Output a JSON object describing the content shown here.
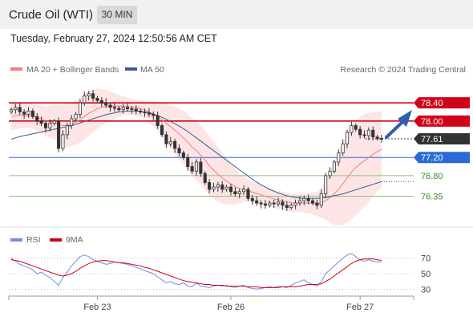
{
  "header": {
    "title": "Crude Oil (WTI)",
    "timeframe": "30 MIN",
    "datetime": "Tuesday, February 27, 2024 12:50:56 AM CET"
  },
  "colors": {
    "resistance": "#d0021b",
    "pivot": "#2a6ad8",
    "support": "#8cc47a",
    "current": "#333333",
    "ma50": "#3c5a96",
    "ma20": "#f08080",
    "band": "#fde0e0",
    "rsi": "#6f8fe0",
    "rsi_ma": "#d0021b",
    "arrow": "#2f5fa8"
  },
  "chart_data": [
    {
      "type": "candlestick",
      "legend": [
        {
          "name": "MA 20 + Bollinger Bands",
          "color": "#f08080"
        },
        {
          "name": "MA 50",
          "color": "#3c5a96"
        }
      ],
      "credit": "Research © 2024 Trading Central",
      "ylim": [
        75.9,
        78.72
      ],
      "x_ticks": [
        "Feb 23",
        "Feb 26",
        "Feb 27"
      ],
      "x_tick_index": [
        20,
        51,
        81
      ],
      "levels": [
        {
          "value": 78.4,
          "label": "78.40",
          "kind": "resistance"
        },
        {
          "value": 78.0,
          "label": "78.00",
          "kind": "resistance"
        },
        {
          "value": 77.61,
          "label": "77.61",
          "kind": "current"
        },
        {
          "value": 77.2,
          "label": "77.20",
          "kind": "pivot"
        },
        {
          "value": 76.8,
          "label": "76.80",
          "kind": "support"
        },
        {
          "value": 76.35,
          "label": "76.35",
          "kind": "support"
        }
      ],
      "close": [
        78.25,
        78.3,
        78.2,
        78.15,
        78.22,
        78.1,
        78.0,
        77.95,
        77.85,
        77.95,
        78.0,
        77.4,
        77.7,
        77.9,
        78.05,
        78.15,
        78.4,
        78.55,
        78.6,
        78.5,
        78.45,
        78.4,
        78.35,
        78.3,
        78.28,
        78.25,
        78.3,
        78.27,
        78.26,
        78.22,
        78.2,
        78.18,
        78.15,
        78.12,
        77.9,
        77.7,
        77.5,
        77.55,
        77.4,
        77.3,
        77.2,
        77.0,
        76.9,
        77.1,
        76.85,
        76.65,
        76.5,
        76.55,
        76.6,
        76.5,
        76.55,
        76.45,
        76.4,
        76.45,
        76.5,
        76.3,
        76.25,
        76.2,
        76.18,
        76.15,
        76.2,
        76.18,
        76.22,
        76.15,
        76.1,
        76.15,
        76.2,
        76.25,
        76.3,
        76.25,
        76.2,
        76.15,
        76.4,
        76.8,
        76.9,
        77.1,
        77.3,
        77.5,
        77.75,
        77.9,
        77.82,
        77.7,
        77.68,
        77.8,
        77.65,
        77.62,
        77.61
      ],
      "ma20": [
        78.1,
        78.12,
        78.13,
        78.12,
        78.12,
        78.1,
        78.08,
        78.05,
        78.0,
        77.98,
        77.98,
        77.92,
        77.9,
        77.9,
        77.93,
        77.97,
        78.03,
        78.1,
        78.17,
        78.22,
        78.27,
        78.3,
        78.32,
        78.33,
        78.33,
        78.33,
        78.33,
        78.32,
        78.31,
        78.29,
        78.27,
        78.24,
        78.2,
        78.16,
        78.1,
        78.03,
        77.95,
        77.88,
        77.8,
        77.72,
        77.63,
        77.53,
        77.43,
        77.35,
        77.25,
        77.14,
        77.02,
        76.92,
        76.83,
        76.75,
        76.68,
        76.62,
        76.56,
        76.52,
        76.5,
        76.47,
        76.44,
        76.41,
        76.38,
        76.35,
        76.32,
        76.29,
        76.27,
        76.25,
        76.23,
        76.21,
        76.2,
        76.2,
        76.2,
        76.2,
        76.19,
        76.18,
        76.2,
        76.25,
        76.32,
        76.4,
        76.5,
        76.62,
        76.75,
        76.88,
        76.98,
        77.06,
        77.13,
        77.2,
        77.27,
        77.33,
        77.38
      ],
      "band_width": [
        0.3,
        0.3,
        0.29,
        0.28,
        0.27,
        0.27,
        0.28,
        0.3,
        0.33,
        0.36,
        0.38,
        0.42,
        0.45,
        0.47,
        0.48,
        0.49,
        0.5,
        0.5,
        0.49,
        0.47,
        0.44,
        0.4,
        0.36,
        0.32,
        0.28,
        0.24,
        0.21,
        0.19,
        0.18,
        0.18,
        0.19,
        0.21,
        0.24,
        0.28,
        0.33,
        0.38,
        0.43,
        0.48,
        0.52,
        0.56,
        0.59,
        0.62,
        0.64,
        0.65,
        0.66,
        0.66,
        0.65,
        0.63,
        0.6,
        0.56,
        0.51,
        0.45,
        0.39,
        0.33,
        0.28,
        0.25,
        0.23,
        0.22,
        0.21,
        0.2,
        0.2,
        0.2,
        0.2,
        0.2,
        0.2,
        0.2,
        0.2,
        0.2,
        0.21,
        0.22,
        0.24,
        0.27,
        0.33,
        0.42,
        0.55,
        0.68,
        0.8,
        0.9,
        0.98,
        1.03,
        1.05,
        1.04,
        1.02,
        0.98,
        0.93,
        0.88,
        0.83
      ],
      "ma50": [
        77.6,
        77.63,
        77.66,
        77.68,
        77.7,
        77.72,
        77.74,
        77.76,
        77.78,
        77.8,
        77.82,
        77.84,
        77.86,
        77.88,
        77.9,
        77.93,
        77.96,
        77.99,
        78.02,
        78.05,
        78.08,
        78.11,
        78.14,
        78.16,
        78.18,
        78.2,
        78.21,
        78.22,
        78.22,
        78.22,
        78.21,
        78.2,
        78.18,
        78.15,
        78.12,
        78.08,
        78.04,
        77.99,
        77.94,
        77.89,
        77.83,
        77.77,
        77.7,
        77.63,
        77.56,
        77.49,
        77.42,
        77.35,
        77.28,
        77.21,
        77.14,
        77.07,
        77.0,
        76.93,
        76.86,
        76.79,
        76.72,
        76.66,
        76.6,
        76.55,
        76.5,
        76.46,
        76.42,
        76.39,
        76.36,
        76.34,
        76.32,
        76.31,
        76.3,
        76.3,
        76.3,
        76.3,
        76.31,
        76.32,
        76.34,
        76.36,
        76.38,
        76.4,
        76.43,
        76.46,
        76.49,
        76.52,
        76.55,
        76.58,
        76.61,
        76.64,
        76.67
      ]
    },
    {
      "type": "line",
      "legend": [
        {
          "name": "RSI",
          "color": "#6f8fe0"
        },
        {
          "name": "9MA",
          "color": "#d0021b"
        }
      ],
      "ylim": [
        20,
        80
      ],
      "y_ticks": [
        70,
        50,
        30
      ],
      "series": [
        {
          "name": "RSI",
          "values": [
            70,
            66,
            62,
            60,
            58,
            55,
            50,
            52,
            48,
            45,
            40,
            35,
            45,
            52,
            60,
            66,
            72,
            74,
            72,
            68,
            66,
            64,
            62,
            63,
            65,
            64,
            63,
            62,
            60,
            58,
            56,
            54,
            52,
            50,
            46,
            42,
            38,
            40,
            37,
            36,
            38,
            34,
            33,
            38,
            34,
            33,
            32,
            34,
            35,
            34,
            35,
            33,
            32,
            34,
            35,
            32,
            31,
            30,
            31,
            32,
            33,
            32,
            34,
            33,
            32,
            35,
            38,
            40,
            42,
            38,
            36,
            34,
            40,
            50,
            55,
            60,
            65,
            70,
            74,
            76,
            72,
            68,
            66,
            68,
            66,
            65,
            65
          ]
        },
        {
          "name": "9MA",
          "values": [
            68,
            67,
            66,
            64,
            62,
            60,
            58,
            56,
            54,
            52,
            50,
            48,
            47,
            48,
            50,
            53,
            57,
            60,
            63,
            65,
            66,
            67,
            67,
            66,
            65,
            64,
            64,
            63,
            62,
            61,
            60,
            58,
            57,
            55,
            53,
            51,
            49,
            47,
            45,
            43,
            41,
            40,
            39,
            38,
            37,
            36,
            36,
            35,
            35,
            35,
            34,
            34,
            34,
            34,
            34,
            33,
            33,
            33,
            32,
            32,
            32,
            32,
            32,
            33,
            33,
            33,
            33,
            34,
            35,
            36,
            36,
            36,
            37,
            40,
            43,
            47,
            51,
            55,
            59,
            63,
            66,
            68,
            69,
            69,
            69,
            68,
            67
          ]
        }
      ]
    }
  ]
}
